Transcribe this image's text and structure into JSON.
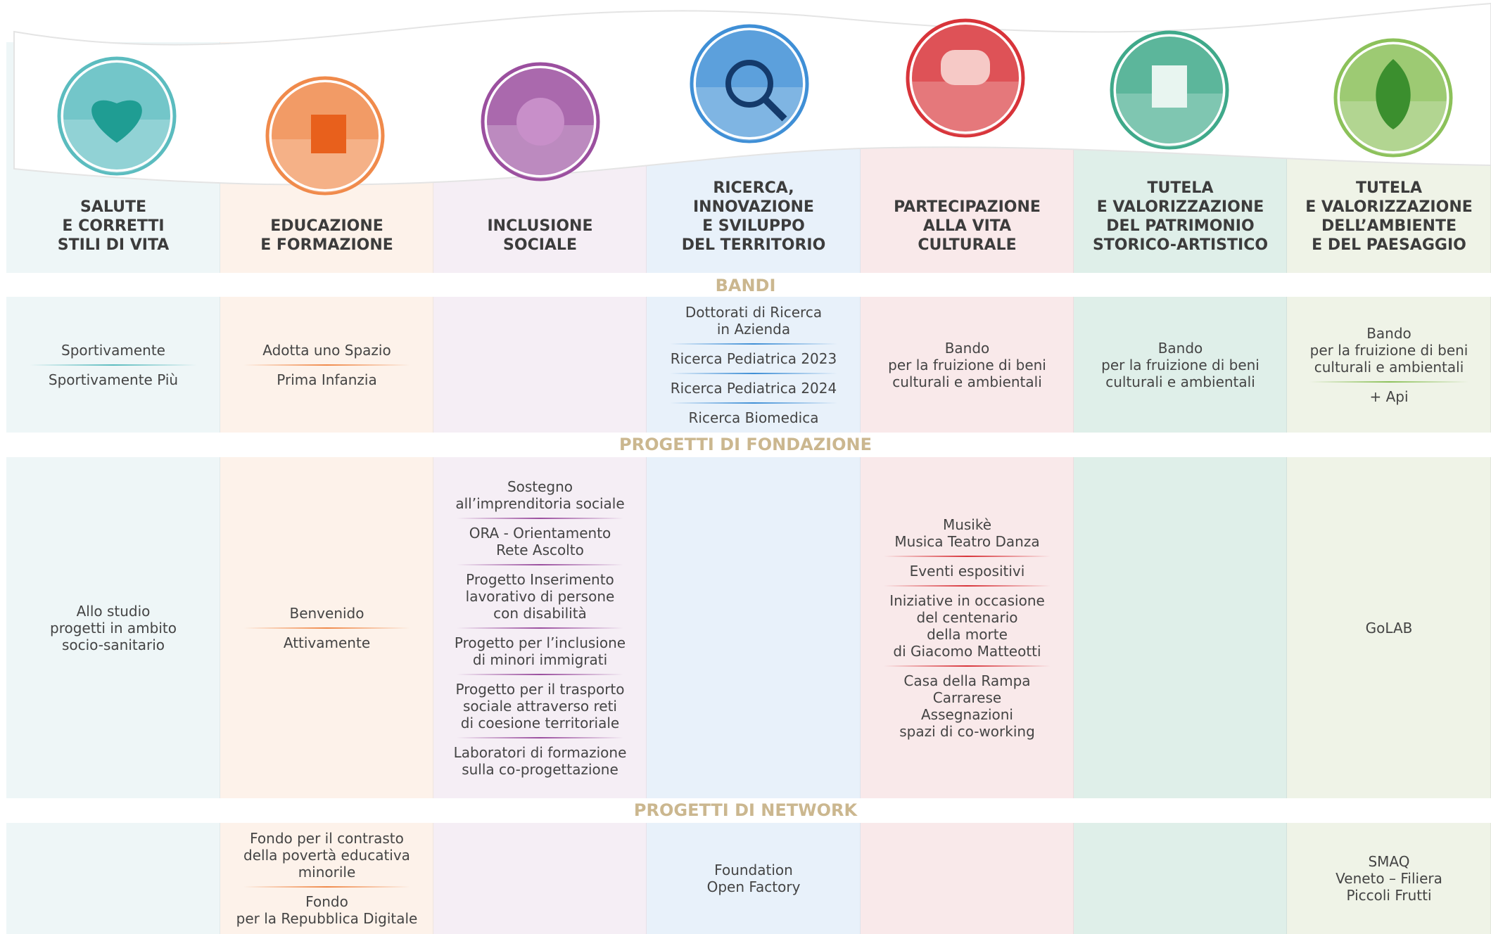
{
  "sections": {
    "bandi": "BANDI",
    "fondazione": "PROGETTI DI FONDAZIONE",
    "network": "PROGETTI DI NETWORK"
  },
  "columns": [
    {
      "title": "SALUTE\nE CORRETTI\nSTILI DI VITA",
      "bandi": [
        "Sportivamente",
        "Sportivamente Più"
      ],
      "fondazione": [
        "Allo studio\nprogetti in ambito\nsocio-sanitario"
      ],
      "network": []
    },
    {
      "title": "EDUCAZIONE\nE FORMAZIONE",
      "bandi": [
        "Adotta uno Spazio",
        "Prima Infanzia"
      ],
      "fondazione": [
        "Benvenido",
        "Attivamente"
      ],
      "network": [
        "Fondo per il contrasto\ndella povertà educativa\nminorile",
        "Fondo\nper la Repubblica Digitale"
      ]
    },
    {
      "title": "INCLUSIONE\nSOCIALE",
      "bandi": [],
      "fondazione": [
        "Sostegno\nall’imprenditoria sociale",
        "ORA - Orientamento\nRete Ascolto",
        "Progetto Inserimento\nlavorativo di persone\ncon disabilità",
        "Progetto per l’inclusione\ndi minori immigrati",
        "Progetto per il trasporto\nsociale attraverso reti\ndi coesione territoriale",
        "Laboratori di formazione\nsulla co-progettazione"
      ],
      "network": []
    },
    {
      "title": "RICERCA,\nINNOVAZIONE\nE SVILUPPO\nDEL TERRITORIO",
      "bandi": [
        "Dottorati di Ricerca\nin Azienda",
        "Ricerca Pediatrica 2023",
        "Ricerca Pediatrica 2024",
        "Ricerca Biomedica"
      ],
      "fondazione": [],
      "network": [
        "Foundation\nOpen Factory"
      ]
    },
    {
      "title": "PARTECIPAZIONE\nALLA VITA\nCULTURALE",
      "bandi": [
        "Bando\nper la fruizione di beni\nculturali e ambientali"
      ],
      "fondazione": [
        "Musikè\nMusica Teatro Danza",
        "Eventi espositivi",
        "Iniziative in occasione\ndel centenario\ndella morte\ndi Giacomo Matteotti",
        "Casa della Rampa\nCarrarese\nAssegnazioni\nspazi di co-working"
      ],
      "network": []
    },
    {
      "title": "TUTELA\nE VALORIZZAZIONE\nDEL PATRIMONIO\nSTORICO-ARTISTICO",
      "bandi": [
        "Bando\nper la fruizione di beni\nculturali e ambientali"
      ],
      "fondazione": [],
      "network": []
    },
    {
      "title": "TUTELA\nE VALORIZZAZIONE\nDELL’AMBIENTE\nE DEL PAESAGGIO",
      "bandi": [
        "Bando\nper la fruizione di beni\nculturali e ambientali",
        "+ Api"
      ],
      "fondazione": [
        "GoLAB"
      ],
      "network": [
        "SMAQ\nVeneto – Filiera\nPiccoli Frutti"
      ]
    }
  ]
}
